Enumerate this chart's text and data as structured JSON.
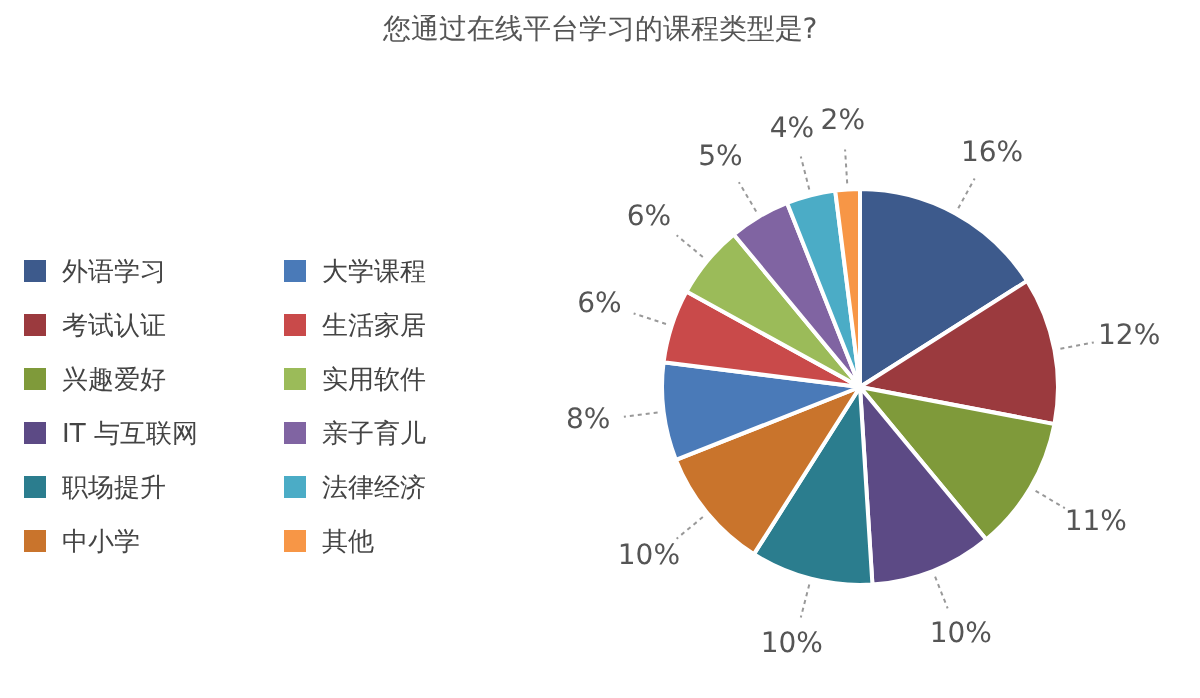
{
  "chart_data": {
    "type": "pie",
    "title": "您通过在线平台学习的课程类型是?",
    "categories": [
      "外语学习",
      "考试认证",
      "兴趣爱好",
      "IT 与互联网",
      "职场提升",
      "中小学",
      "大学课程",
      "生活家居",
      "实用软件",
      "亲子育儿",
      "法律经济",
      "其他"
    ],
    "values": [
      16,
      12,
      11,
      10,
      10,
      10,
      8,
      6,
      6,
      5,
      4,
      2
    ],
    "value_labels": [
      "16%",
      "12%",
      "11%",
      "10%",
      "10%",
      "10%",
      "8%",
      "6%",
      "6%",
      "5%",
      "4%",
      "2%"
    ],
    "colors": [
      "#3d5a8c",
      "#9b3a3e",
      "#7f9a3a",
      "#5c4a85",
      "#2b7d8e",
      "#c9742c",
      "#4a7ab8",
      "#c94a4a",
      "#9bbb59",
      "#8064a2",
      "#4bacc6",
      "#f79646"
    ],
    "legend": "left"
  }
}
